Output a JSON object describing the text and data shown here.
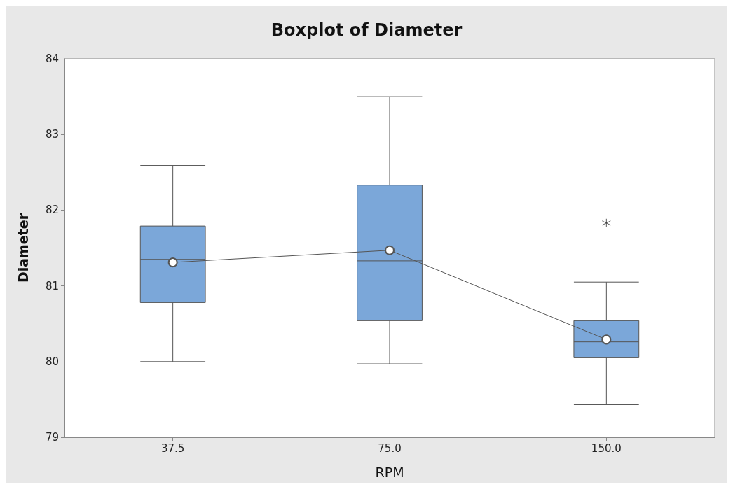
{
  "chart_data": {
    "type": "box",
    "title": "Boxplot of Diameter",
    "xlabel": "RPM",
    "ylabel": "Diameter",
    "categories": [
      "37.5",
      "75.0",
      "150.0"
    ],
    "color": "#7ba7d9",
    "ylim": [
      79,
      84
    ],
    "yticks": [
      79,
      80,
      81,
      82,
      83,
      84
    ],
    "grid": false,
    "boxes": [
      {
        "low": 80.0,
        "q1": 80.78,
        "median": 81.35,
        "q3": 81.79,
        "high": 82.59
      },
      {
        "low": 79.97,
        "q1": 80.54,
        "median": 81.33,
        "q3": 82.33,
        "high": 83.5
      },
      {
        "low": 79.43,
        "q1": 80.05,
        "median": 80.26,
        "q3": 80.54,
        "high": 81.05,
        "outliers": [
          81.83
        ]
      }
    ],
    "series": [
      {
        "type": "line",
        "color": "#555555",
        "marker": "circle",
        "values": [
          81.31,
          81.47,
          80.29
        ]
      }
    ]
  }
}
